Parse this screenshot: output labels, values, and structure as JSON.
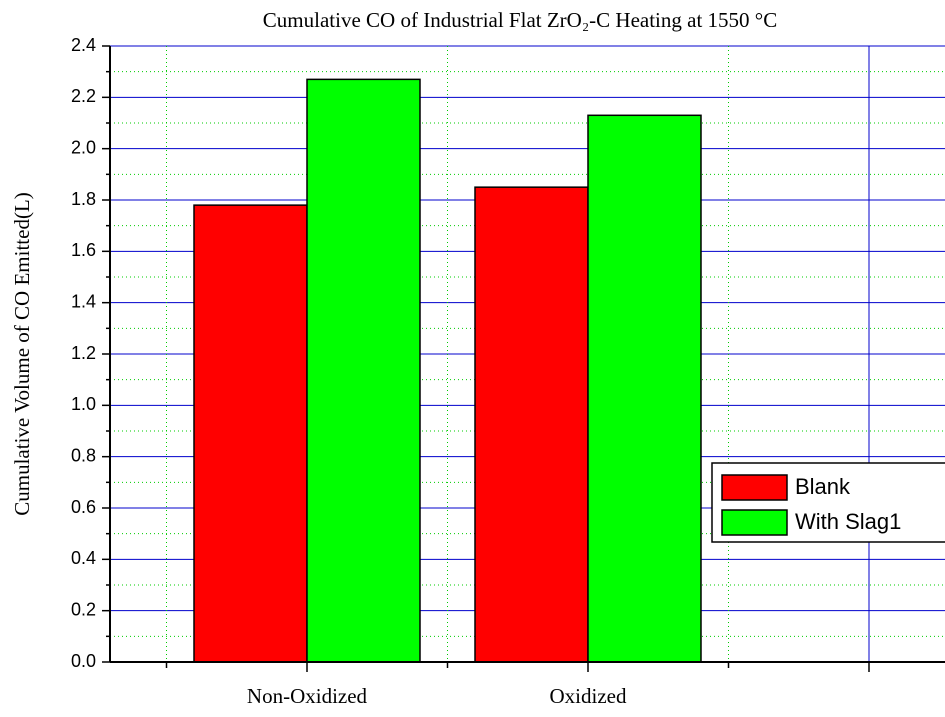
{
  "chart_data": {
    "type": "bar",
    "title": "Cumulative CO of Industrial Flat ZrO₂-C Heating at 1550 °C",
    "y_label": "Cumulative Volume of CO Emitted(L)",
    "categories": [
      "Non-Oxidized",
      "Oxidized",
      null
    ],
    "series": [
      {
        "name": "Blank",
        "color": "#ff0000",
        "values": [
          1.78,
          1.85,
          null
        ]
      },
      {
        "name": "With Slag1",
        "color": "#00ff00",
        "values": [
          2.27,
          2.13,
          null
        ]
      }
    ],
    "ylim": [
      0,
      2.4
    ],
    "yticks": [
      {
        "value": 0,
        "label": "0.0"
      },
      0.2,
      0.4,
      0.6,
      0.8,
      {
        "value": 1,
        "label": "1.0"
      },
      1.2,
      1.4,
      1.6,
      1.8,
      {
        "value": 2,
        "label": "2.0"
      },
      2.2,
      2.4
    ],
    "grid": true,
    "legend": "right"
  }
}
